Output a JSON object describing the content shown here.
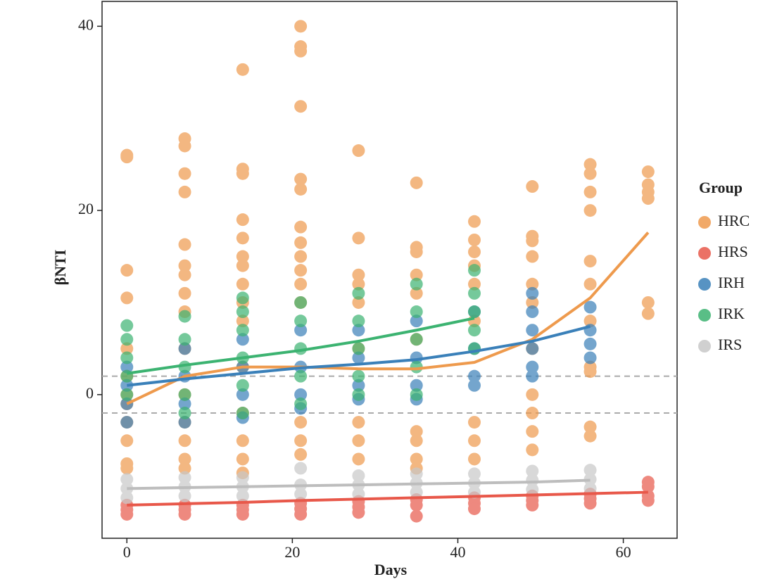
{
  "chart_data": {
    "type": "scatter",
    "xlabel": "Days",
    "ylabel": "βNTI",
    "legend_title": "Group",
    "legend": "right",
    "xlim": [
      -3,
      66.5
    ],
    "ylim": [
      -15.6,
      42.7
    ],
    "xticks": [
      0,
      20,
      40,
      60
    ],
    "yticks": [
      0,
      20,
      40
    ],
    "hlines": [
      2,
      -2
    ],
    "series": [
      {
        "name": "HRC",
        "color": "#ee9a4d",
        "x": [
          0,
          0,
          0,
          0,
          0,
          0,
          0,
          0,
          0,
          0,
          0,
          0,
          7,
          7,
          7,
          7,
          7,
          7,
          7,
          7,
          7,
          7,
          7,
          7,
          7,
          7,
          7,
          14,
          14,
          14,
          14,
          14,
          14,
          14,
          14,
          14,
          14,
          14,
          14,
          14,
          14,
          14,
          21,
          21,
          21,
          21,
          21,
          21,
          21,
          21,
          21,
          21,
          21,
          21,
          21,
          21,
          21,
          28,
          28,
          28,
          28,
          28,
          28,
          28,
          28,
          28,
          35,
          35,
          35,
          35,
          35,
          35,
          35,
          35,
          35,
          35,
          42,
          42,
          42,
          42,
          42,
          42,
          42,
          42,
          42,
          49,
          49,
          49,
          49,
          49,
          49,
          49,
          49,
          49,
          49,
          49,
          56,
          56,
          56,
          56,
          56,
          56,
          56,
          56,
          56,
          56,
          56,
          63,
          63,
          63,
          63,
          63,
          63
        ],
        "values": [
          26,
          25.8,
          13.5,
          10.5,
          5,
          2,
          0,
          -1,
          -3,
          -5,
          -7.5,
          -8,
          27.8,
          27,
          24,
          22,
          16.3,
          14,
          13,
          11,
          9,
          5,
          0,
          -3,
          -5,
          -7,
          -8,
          35.3,
          24.5,
          24,
          19,
          17,
          15,
          14,
          12,
          10,
          8,
          3,
          -2,
          -5,
          -7,
          -8.5,
          40,
          37.8,
          37.3,
          31.3,
          23.4,
          22.3,
          18.2,
          16.5,
          15,
          13.5,
          12,
          10,
          -3,
          -5,
          -6.5,
          26.5,
          17,
          13,
          12,
          10,
          5,
          -3,
          -5,
          -7,
          23,
          16,
          15.5,
          13,
          11,
          6,
          -4,
          -5,
          -7,
          -8,
          18.8,
          16.8,
          15.5,
          14,
          12,
          8,
          -3,
          -5,
          -7,
          22.6,
          17.2,
          16.7,
          15,
          12,
          10,
          5,
          0,
          -2,
          -4,
          -6,
          25,
          24,
          22,
          20,
          14.5,
          12,
          8,
          3,
          2.5,
          -3.5,
          -4.5,
          24.2,
          22.8,
          22,
          21.3,
          10,
          8.8
        ],
        "trend_x": [
          0,
          7,
          14,
          21,
          28,
          35,
          42,
          49,
          56,
          63
        ],
        "trend_values": [
          -1,
          2,
          3,
          3,
          2.8,
          2.8,
          3.5,
          6,
          10.5,
          17.6
        ]
      },
      {
        "name": "HRS",
        "color": "#e8584a",
        "x": [
          0,
          0,
          0,
          7,
          7,
          7,
          14,
          14,
          14,
          21,
          21,
          21,
          28,
          28,
          28,
          35,
          35,
          35,
          42,
          42,
          42,
          49,
          49,
          49,
          56,
          56,
          56,
          63,
          63,
          63,
          63
        ],
        "values": [
          -12,
          -12.5,
          -13,
          -12,
          -12.5,
          -13,
          -12,
          -12.5,
          -13,
          -11.8,
          -12.4,
          -13,
          -11.6,
          -12.2,
          -12.8,
          -11.4,
          -12,
          -13.2,
          -11.2,
          -11.8,
          -12.4,
          -11,
          -11.5,
          -12,
          -10.8,
          -11.3,
          -11.8,
          -9.5,
          -10,
          -11,
          -11.5
        ],
        "trend_x": [
          0,
          7,
          14,
          21,
          28,
          35,
          42,
          49,
          56,
          63
        ],
        "trend_values": [
          -12,
          -11.85,
          -11.7,
          -11.5,
          -11.35,
          -11.2,
          -11.05,
          -10.9,
          -10.75,
          -10.6
        ]
      },
      {
        "name": "IRH",
        "color": "#3a80b9",
        "x": [
          0,
          0,
          0,
          0,
          7,
          7,
          7,
          7,
          14,
          14,
          14,
          14,
          21,
          21,
          21,
          21,
          28,
          28,
          28,
          28,
          35,
          35,
          35,
          35,
          42,
          42,
          42,
          42,
          49,
          49,
          49,
          49,
          49,
          49,
          56,
          56,
          56,
          56
        ],
        "values": [
          3,
          1,
          -1,
          -3,
          5,
          2,
          -1,
          -3,
          6,
          3,
          0,
          -2.5,
          7,
          3,
          0,
          -1.5,
          7,
          4,
          1,
          -0.5,
          8,
          4,
          1,
          -0.5,
          9,
          5,
          2,
          1,
          11,
          9,
          7,
          5,
          3,
          2,
          9.5,
          7,
          5.5,
          4
        ],
        "trend_x": [
          0,
          7,
          14,
          21,
          28,
          35,
          42,
          49,
          56
        ],
        "trend_values": [
          1,
          1.7,
          2.3,
          2.9,
          3.3,
          3.8,
          4.7,
          5.8,
          7.4
        ]
      },
      {
        "name": "IRK",
        "color": "#3cb371",
        "x": [
          0,
          0,
          0,
          0,
          0,
          7,
          7,
          7,
          7,
          7,
          14,
          14,
          14,
          14,
          14,
          14,
          21,
          21,
          21,
          21,
          21,
          28,
          28,
          28,
          28,
          28,
          35,
          35,
          35,
          35,
          35,
          42,
          42,
          42,
          42,
          42
        ],
        "values": [
          7.5,
          6,
          4,
          2,
          0,
          8.5,
          6,
          3,
          0,
          -2,
          10.5,
          9,
          7,
          4,
          1,
          -2,
          10,
          8,
          5,
          2,
          -1,
          11,
          8,
          5,
          2,
          0,
          12,
          9,
          6,
          3,
          0,
          13.5,
          11,
          9,
          7,
          5
        ],
        "trend_x": [
          0,
          7,
          14,
          21,
          28,
          35,
          42
        ],
        "trend_values": [
          2.3,
          3.2,
          4,
          4.8,
          5.8,
          7,
          8.3
        ]
      },
      {
        "name": "IRS",
        "color": "#c8c8c8",
        "x": [
          0,
          0,
          0,
          7,
          7,
          7,
          14,
          14,
          14,
          21,
          21,
          21,
          28,
          28,
          28,
          35,
          35,
          35,
          42,
          42,
          42,
          49,
          49,
          49,
          56,
          56,
          56
        ],
        "values": [
          -9.2,
          -10.2,
          -11.2,
          -9,
          -10,
          -11,
          -9,
          -10,
          -11,
          -8,
          -9.8,
          -10.8,
          -8.8,
          -9.8,
          -10.8,
          -8.6,
          -9.6,
          -10.6,
          -8.6,
          -9.6,
          -10.6,
          -8.3,
          -9.3,
          -10.3,
          -8.2,
          -9.2,
          -10.2
        ],
        "trend_x": [
          0,
          7,
          14,
          21,
          28,
          35,
          42,
          49,
          56
        ],
        "trend_values": [
          -10.2,
          -10.1,
          -10,
          -9.9,
          -9.8,
          -9.7,
          -9.6,
          -9.5,
          -9.3
        ]
      }
    ]
  }
}
